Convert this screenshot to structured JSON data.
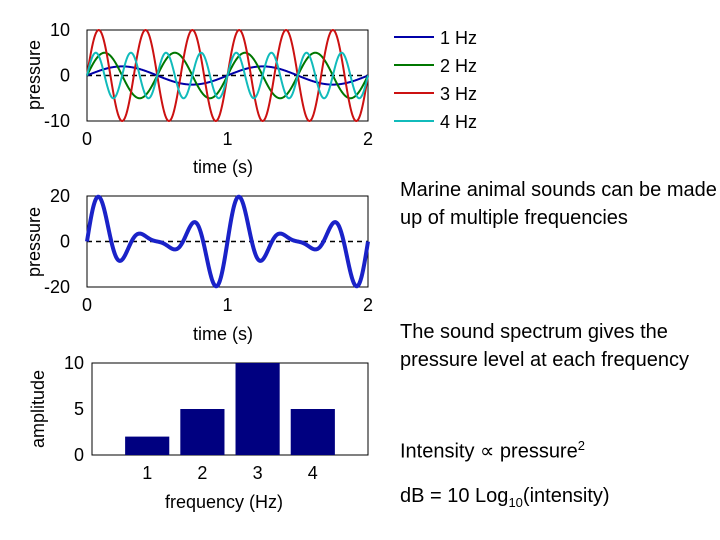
{
  "colors": {
    "series_1hz": "#0000a8",
    "series_2hz": "#007700",
    "series_3hz": "#cc1111",
    "series_4hz": "#11bbbb",
    "combined": "#1a22c8",
    "bar": "#000080",
    "zero_line": "#000000"
  },
  "chart_data": [
    {
      "type": "line",
      "xlabel": "time (s)",
      "ylabel": "pressure",
      "xlim": [
        0,
        2
      ],
      "ylim": [
        -10,
        10
      ],
      "xticks": [
        "0",
        "1",
        "2"
      ],
      "yticks": [
        "10",
        "0",
        "-10"
      ],
      "reference_line": {
        "y": 0,
        "style": "dashed"
      },
      "series": [
        {
          "name": "1 Hz",
          "frequency": 1,
          "amplitude": 2,
          "color": "#0000a8"
        },
        {
          "name": "2 Hz",
          "frequency": 2,
          "amplitude": 5,
          "color": "#007700"
        },
        {
          "name": "3 Hz",
          "frequency": 3,
          "amplitude": 10,
          "color": "#cc1111"
        },
        {
          "name": "4 Hz",
          "frequency": 4,
          "amplitude": 5,
          "color": "#11bbbb"
        }
      ],
      "legend": "right"
    },
    {
      "type": "line",
      "xlabel": "time (s)",
      "ylabel": "pressure",
      "xlim": [
        0,
        2
      ],
      "ylim": [
        -20,
        20
      ],
      "xticks": [
        "0",
        "1",
        "2"
      ],
      "yticks": [
        "20",
        "0",
        "-20"
      ],
      "reference_line": {
        "y": 0,
        "style": "dashed"
      },
      "series": [
        {
          "components": [
            {
              "frequency": 1,
              "amplitude": 2
            },
            {
              "frequency": 2,
              "amplitude": 5
            },
            {
              "frequency": 3,
              "amplitude": 10
            },
            {
              "frequency": 4,
              "amplitude": 5
            }
          ],
          "color": "#1a22c8"
        }
      ]
    },
    {
      "type": "bar",
      "xlabel": "frequency (Hz)",
      "ylabel": "amplitude",
      "categories": [
        "1",
        "2",
        "3",
        "4"
      ],
      "values": [
        2,
        5,
        10,
        5
      ],
      "ylim": [
        0,
        10
      ],
      "yticks": [
        "10",
        "5",
        "0"
      ]
    }
  ],
  "text": {
    "para1": "Marine animal sounds can be made up of multiple frequencies",
    "para2": "The sound spectrum gives the pressure level at each frequency",
    "intensity_prefix": "Intensity",
    "proportional_symbol": "∝",
    "intensity_word": "pressure",
    "intensity_exp": "2",
    "db_prefix": "dB = 10 Log",
    "db_sub": "10",
    "db_suffix": "(intensity)"
  }
}
